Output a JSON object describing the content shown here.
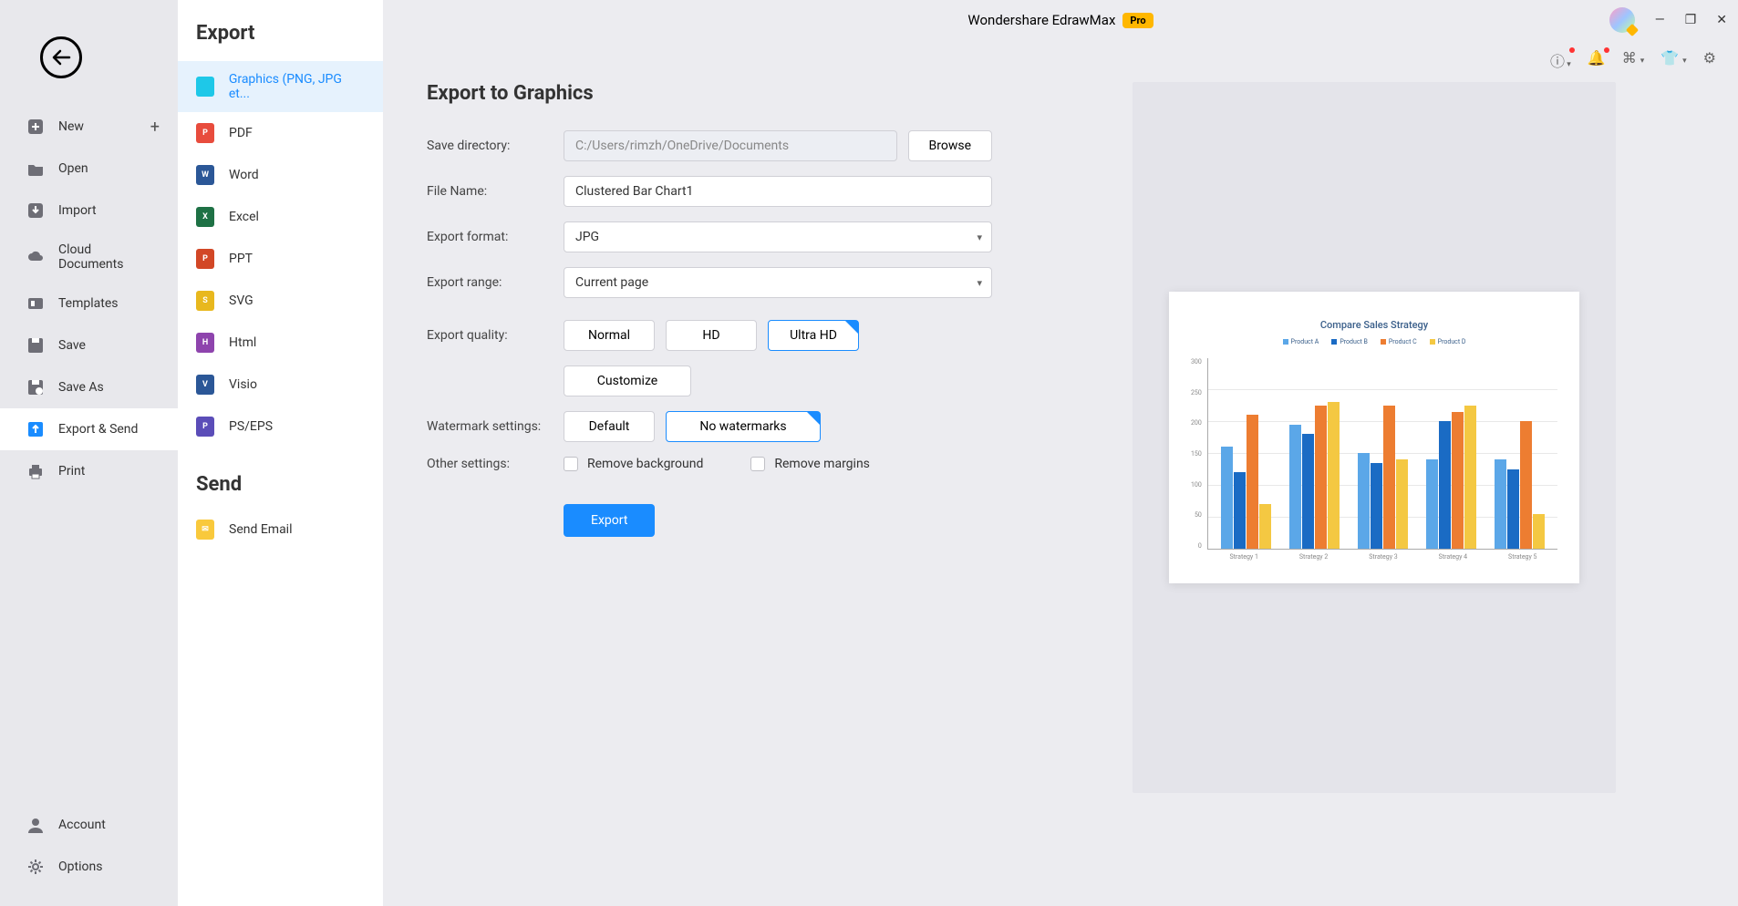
{
  "app": {
    "title": "Wondershare EdrawMax",
    "badge": "Pro"
  },
  "sidebar": {
    "items": [
      {
        "id": "new",
        "label": "New",
        "icon_bg": "#6e6e76",
        "has_plus": true
      },
      {
        "id": "open",
        "label": "Open",
        "icon_bg": "#6e6e76"
      },
      {
        "id": "import",
        "label": "Import",
        "icon_bg": "#6e6e76"
      },
      {
        "id": "cloud",
        "label": "Cloud Documents",
        "icon_bg": "#6e6e76"
      },
      {
        "id": "templates",
        "label": "Templates",
        "icon_bg": "#6e6e76"
      },
      {
        "id": "save",
        "label": "Save",
        "icon_bg": "#6e6e76"
      },
      {
        "id": "saveas",
        "label": "Save As",
        "icon_bg": "#6e6e76"
      },
      {
        "id": "export",
        "label": "Export & Send",
        "icon_bg": "#1a8cff",
        "active": true
      },
      {
        "id": "print",
        "label": "Print",
        "icon_bg": "#6e6e76"
      }
    ],
    "bottom": [
      {
        "id": "account",
        "label": "Account"
      },
      {
        "id": "options",
        "label": "Options"
      }
    ]
  },
  "export_panel": {
    "header": "Export",
    "types": [
      {
        "id": "graphics",
        "label": "Graphics (PNG, JPG et...",
        "color": "#1ec8e8",
        "txt": "",
        "active": true
      },
      {
        "id": "pdf",
        "label": "PDF",
        "color": "#e84c3d",
        "txt": "P"
      },
      {
        "id": "word",
        "label": "Word",
        "color": "#2b5797",
        "txt": "W"
      },
      {
        "id": "excel",
        "label": "Excel",
        "color": "#1e7145",
        "txt": "X"
      },
      {
        "id": "ppt",
        "label": "PPT",
        "color": "#d24726",
        "txt": "P"
      },
      {
        "id": "svg",
        "label": "SVG",
        "color": "#e8b81e",
        "txt": "S"
      },
      {
        "id": "html",
        "label": "Html",
        "color": "#8e44ad",
        "txt": "H"
      },
      {
        "id": "visio",
        "label": "Visio",
        "color": "#2b5797",
        "txt": "V"
      },
      {
        "id": "pseps",
        "label": "PS/EPS",
        "color": "#5b4db8",
        "txt": "P"
      }
    ],
    "send_header": "Send",
    "send_items": [
      {
        "id": "email",
        "label": "Send Email",
        "color": "#f9c93c"
      }
    ]
  },
  "form": {
    "title": "Export to Graphics",
    "labels": {
      "save_dir": "Save directory:",
      "file_name": "File Name:",
      "format": "Export format:",
      "range": "Export range:",
      "quality": "Export quality:",
      "watermark": "Watermark settings:",
      "other": "Other settings:"
    },
    "values": {
      "save_dir": "C:/Users/rimzh/OneDrive/Documents",
      "file_name": "Clustered Bar Chart1",
      "format": "JPG",
      "range": "Current page"
    },
    "buttons": {
      "browse": "Browse",
      "quality_normal": "Normal",
      "quality_hd": "HD",
      "quality_uhd": "Ultra HD",
      "customize": "Customize",
      "wm_default": "Default",
      "wm_none": "No watermarks",
      "export": "Export"
    },
    "checkboxes": {
      "remove_bg": "Remove background",
      "remove_margins": "Remove margins"
    }
  },
  "chart": {
    "title": "Compare Sales Strategy",
    "legend": [
      {
        "label": "Product A",
        "color": "#5ba7e8"
      },
      {
        "label": "Product B",
        "color": "#1a6bc4"
      },
      {
        "label": "Product C",
        "color": "#ed7d31"
      },
      {
        "label": "Product D",
        "color": "#f4c842"
      }
    ],
    "y_ticks": [
      "300",
      "250",
      "200",
      "150",
      "100",
      "50",
      "0"
    ],
    "x_labels": [
      "Strategy 1",
      "Strategy 2",
      "Strategy 3",
      "Strategy 4",
      "Strategy 5"
    ],
    "y_max": 300,
    "groups": [
      [
        160,
        120,
        210,
        70
      ],
      [
        195,
        180,
        225,
        230
      ],
      [
        150,
        135,
        225,
        140
      ],
      [
        140,
        200,
        215,
        225
      ],
      [
        140,
        125,
        200,
        55
      ]
    ]
  },
  "colors": {
    "accent": "#1a8cff",
    "bg": "#ececf0"
  }
}
